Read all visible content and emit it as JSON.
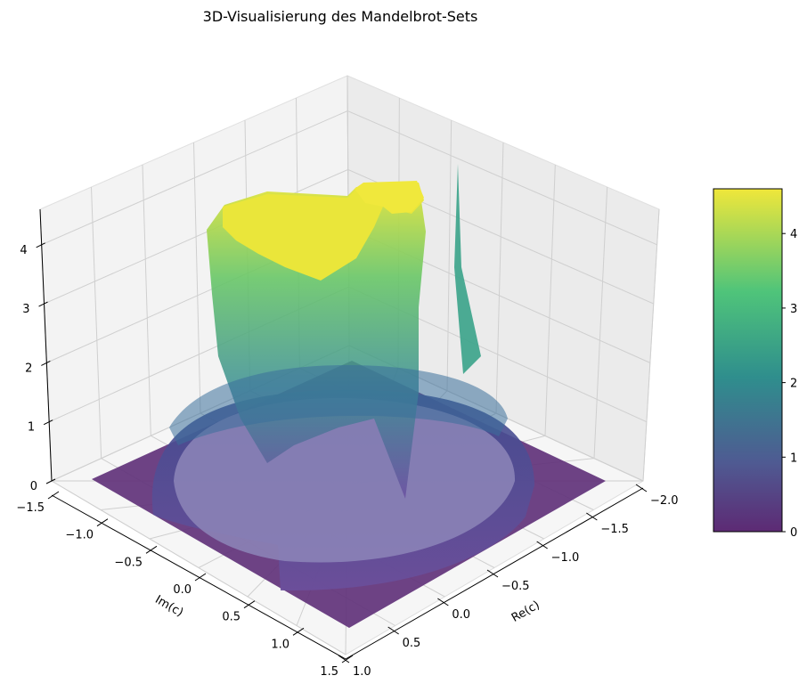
{
  "chart_data": {
    "type": "surface",
    "title": "3D-Visualisierung des Mandelbrot-Sets",
    "xlabel": "Re(c)",
    "ylabel": "Im(c)",
    "zlabel": "",
    "x_ticks": [
      "−2.0",
      "−1.5",
      "−1.0",
      "−0.5",
      "0.0",
      "0.5",
      "1.0"
    ],
    "y_ticks": [
      "−1.5",
      "−1.0",
      "−0.5",
      "0.0",
      "0.5",
      "1.0",
      "1.5"
    ],
    "z_ticks": [
      "0",
      "1",
      "2",
      "3",
      "4"
    ],
    "colorbar_ticks": [
      "0",
      "1",
      "2",
      "3",
      "4"
    ],
    "xlim": [
      -2.0,
      1.0
    ],
    "ylim": [
      -1.5,
      1.5
    ],
    "zlim": [
      0,
      4.6
    ],
    "colormap": "viridis",
    "grid": true,
    "colorbar_position": "right",
    "colors": {
      "pane": "#f2f2f2",
      "grid": "#c8c8c8",
      "flat": "#5b2a7a",
      "high": "#e8e43a"
    }
  }
}
